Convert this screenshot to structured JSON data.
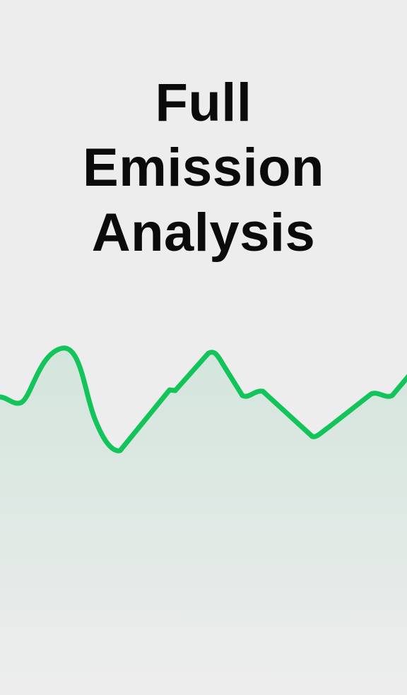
{
  "hero": {
    "title_lines": [
      "Full",
      "Emission",
      "Analysis"
    ]
  },
  "decor": {
    "line_color": "#12c45a",
    "fill_top_color": "#d3e5dc",
    "fill_bottom_color": "#ededed",
    "background_color": "#ededed",
    "icon": "emission-trend-graphic"
  }
}
